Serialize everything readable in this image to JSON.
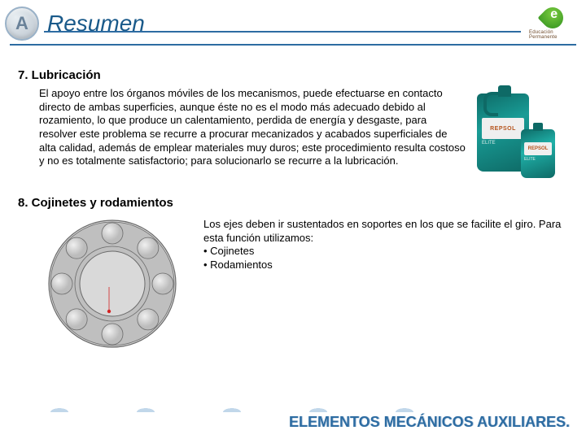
{
  "header": {
    "icon_letter": "A",
    "title": "Resumen",
    "logo_text": "Educación Permanente"
  },
  "section7": {
    "heading": "7.  Lubricación",
    "body": "El apoyo entre los órganos móviles de los mecanismos, puede efectuarse en contacto directo de ambas superficies, aunque éste no es el modo más adecuado debido al rozamiento, lo que produce un calentamiento, perdida de energía y desgaste, para resolver este problema se recurre a procurar mecanizados y acabados superficiales de alta calidad, además de emplear materiales muy duros; este procedimiento resulta costoso y no es totalmente satisfactorio; para solucionarlo se recurre a la lubricación.",
    "can_brand": "REPSOL",
    "can_line_big": "ELITE",
    "can_line_small": "ELITE"
  },
  "section8": {
    "heading": "8.  Cojinetes y rodamientos",
    "intro": "Los ejes deben ir sustentados en soportes en los que se facilite el giro. Para esta función utilizamos:",
    "bullet1": "• Cojinetes",
    "bullet2": "• Rodamientos"
  },
  "bearing": {
    "outer_r": 78,
    "track_r": 62,
    "inner_r": 40,
    "ball_r": 13,
    "outer_fill": "#d6d6d6",
    "outer_stroke": "#6a6a6a",
    "track_fill": "#bfbfbf",
    "inner_fill": "#d9d9d9",
    "ball_fill_light": "#f0f0f0",
    "ball_fill_dark": "#bcbcbc",
    "dot_color": "#d42222"
  },
  "footer": {
    "text": "ELEMENTOS MECÁNICOS AUXILIARES."
  },
  "colors": {
    "rule": "#2d6ca2",
    "title": "#1a5a8a",
    "footer_text": "#2d6ca2"
  }
}
